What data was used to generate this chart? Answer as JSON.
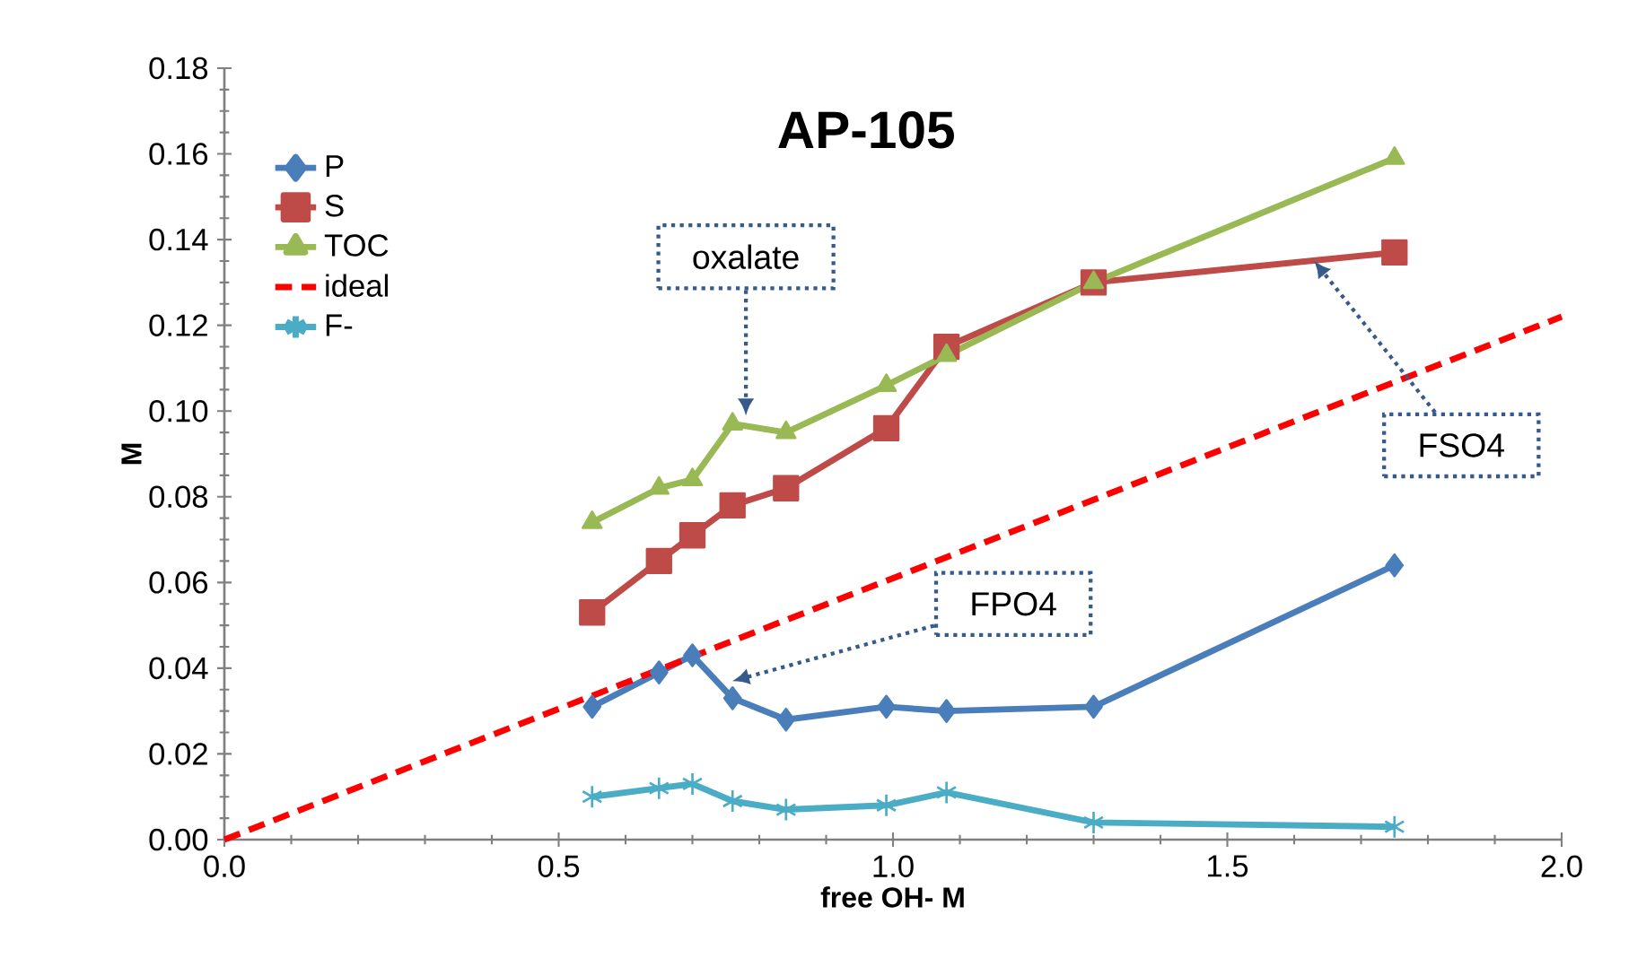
{
  "chart_data": {
    "type": "line",
    "title": "AP-105",
    "xlabel": "free OH- M",
    "ylabel": "M",
    "xlim": [
      0,
      2.0
    ],
    "xticks": [
      {
        "value": 0,
        "label": "0.0"
      },
      {
        "value": 0.5,
        "label": "0.5"
      },
      {
        "value": 1.0,
        "label": "1.0"
      },
      {
        "value": 1.5,
        "label": "1.5"
      },
      {
        "value": 2.0,
        "label": "2.0"
      }
    ],
    "ylim": [
      0,
      0.18
    ],
    "yticks": [
      {
        "value": 0,
        "label": "0.00"
      },
      {
        "value": 0.02,
        "label": "0.02"
      },
      {
        "value": 0.04,
        "label": "0.04"
      },
      {
        "value": 0.06,
        "label": "0.06"
      },
      {
        "value": 0.08,
        "label": "0.08"
      },
      {
        "value": 0.1,
        "label": "0.10"
      },
      {
        "value": 0.12,
        "label": "0.12"
      },
      {
        "value": 0.14,
        "label": "0.14"
      },
      {
        "value": 0.16,
        "label": "0.16"
      },
      {
        "value": 0.18,
        "label": "0.18"
      }
    ],
    "x": [
      0.55,
      0.65,
      0.7,
      0.76,
      0.84,
      0.99,
      1.08,
      1.3,
      1.75
    ],
    "series": [
      {
        "name": "P",
        "color": "#4a7ebb",
        "marker": "diamond",
        "values": [
          0.031,
          0.039,
          0.043,
          0.033,
          0.028,
          0.031,
          0.03,
          0.031,
          0.064
        ]
      },
      {
        "name": "S",
        "color": "#be4b48",
        "marker": "square",
        "values": [
          0.053,
          0.065,
          0.071,
          0.078,
          0.082,
          0.096,
          0.115,
          0.13,
          0.137
        ]
      },
      {
        "name": "TOC",
        "color": "#98b954",
        "marker": "triangle",
        "values": [
          0.074,
          0.082,
          0.084,
          0.097,
          0.095,
          0.106,
          0.113,
          0.13,
          0.159
        ]
      },
      {
        "name": "ideal",
        "color": "#ff0000",
        "marker": "none",
        "line_style": "dashed",
        "x": [
          0,
          2.0
        ],
        "values": [
          0,
          0.122
        ]
      },
      {
        "name": "F-",
        "color": "#4bacc6",
        "marker": "cross",
        "values": [
          0.01,
          0.012,
          0.013,
          0.009,
          0.007,
          0.008,
          0.011,
          0.004,
          0.003
        ]
      }
    ],
    "annotations": [
      {
        "text": "oxalate",
        "x": 0.78,
        "y": 0.099
      },
      {
        "text": "FSO4",
        "x": 1.63,
        "y": 0.135
      },
      {
        "text": "FPO4",
        "x": 0.76,
        "y": 0.037
      }
    ],
    "legend": "top left",
    "grid": false
  }
}
